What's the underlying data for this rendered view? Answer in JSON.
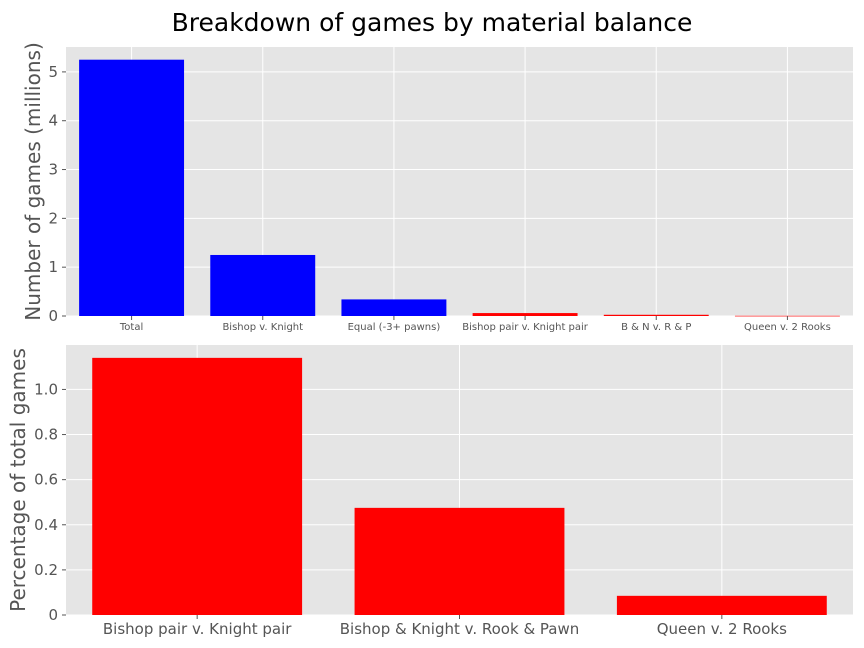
{
  "figure": {
    "title": "Breakdown of games by material balance"
  },
  "colors": {
    "panel_bg": "#e5e5e5",
    "grid": "#ffffff",
    "total_bar": "#0000ff",
    "highlight_bar": "#ff0000"
  },
  "chart_data": [
    {
      "type": "bar",
      "categories": [
        "Total",
        "Bishop v. Knight",
        "Equal (-3+ pawns)",
        "Bishop pair v. Knight pair",
        "B & N v. R & P",
        "Queen v. 2 Rooks"
      ],
      "values": [
        5.25,
        1.25,
        0.34,
        0.06,
        0.025,
        0.0044
      ],
      "bar_colors": [
        "#0000ff",
        "#0000ff",
        "#0000ff",
        "#ff0000",
        "#ff0000",
        "#ff0000"
      ],
      "ylabel": "Number of games (millions)",
      "xlabel": "",
      "ylim": [
        0,
        5.51
      ],
      "yticks": [
        0,
        1,
        2,
        3,
        4,
        5
      ],
      "grid": true
    },
    {
      "type": "bar",
      "categories": [
        "Bishop pair v. Knight pair",
        "Bishop & Knight v. Rook & Pawn",
        "Queen v. 2 Rooks"
      ],
      "values": [
        1.14,
        0.475,
        0.085
      ],
      "bar_colors": [
        "#ff0000",
        "#ff0000",
        "#ff0000"
      ],
      "ylabel": "Percentage of total games",
      "xlabel": "",
      "ylim": [
        0,
        1.197
      ],
      "yticks": [
        "0",
        "0.2",
        "0.4",
        "0.6",
        "0.8",
        "1.0"
      ],
      "grid": true
    }
  ]
}
